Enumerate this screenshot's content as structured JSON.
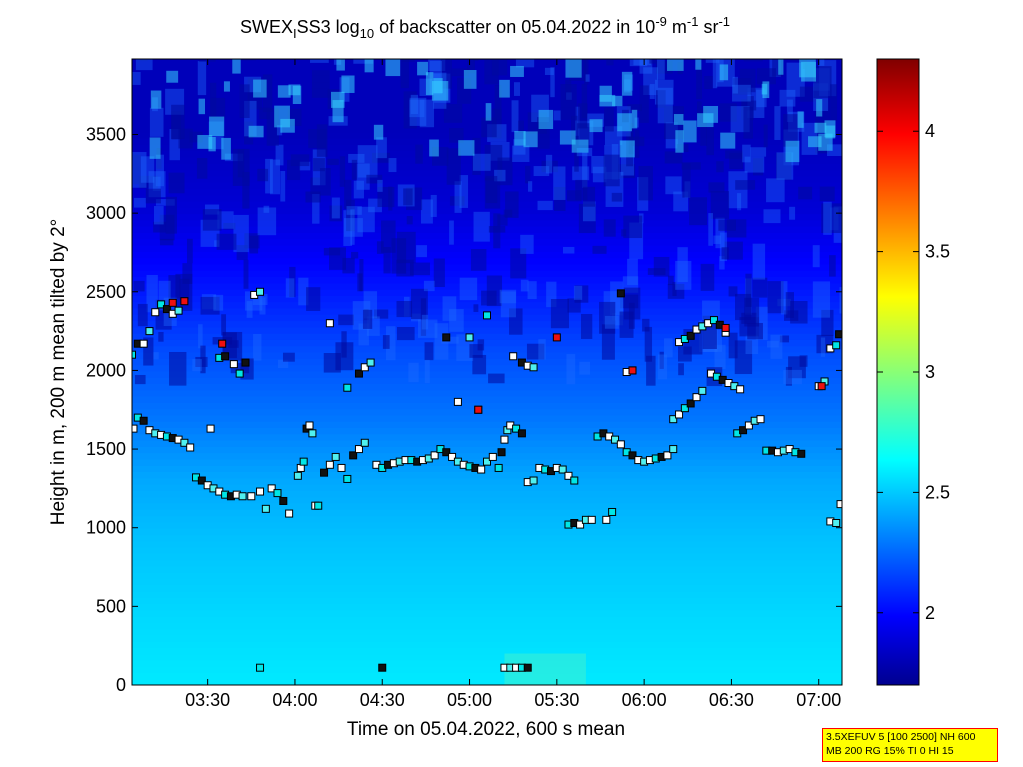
{
  "chart_data": {
    "type": "heatmap",
    "title": {
      "prefix": "SWEX",
      "sub1": "I",
      "mid": "SS3 log",
      "sub2": "10",
      "rest": " of backscatter on 05.04.2022 in 10",
      "sup1": "-9",
      "unit1": " m",
      "sup2": "-1",
      "unit2": " sr",
      "sup3": "-1"
    },
    "xlabel": "Time on 05.04.2022, 600 s mean",
    "ylabel": "Height in m, 200 m mean tilted by 2°",
    "xlim_minutes": [
      184,
      428
    ],
    "ylim": [
      0,
      3980
    ],
    "x_ticks": [
      {
        "t": 210,
        "label": "03:30"
      },
      {
        "t": 240,
        "label": "04:00"
      },
      {
        "t": 270,
        "label": "04:30"
      },
      {
        "t": 300,
        "label": "05:00"
      },
      {
        "t": 330,
        "label": "05:30"
      },
      {
        "t": 360,
        "label": "06:00"
      },
      {
        "t": 390,
        "label": "06:30"
      },
      {
        "t": 420,
        "label": "07:00"
      }
    ],
    "y_ticks": [
      0,
      500,
      1000,
      1500,
      2000,
      2500,
      3000,
      3500
    ],
    "colorbar": {
      "range": [
        1.7,
        4.3
      ],
      "ticks": [
        "2",
        "2.5",
        "3",
        "3.5",
        "4"
      ],
      "tick_values": [
        2,
        2.5,
        3,
        3.5,
        4
      ],
      "colormap": "jet"
    },
    "background_profile": {
      "description_free_values": true,
      "heights": [
        0,
        400,
        900,
        1300,
        1700,
        2100,
        2500,
        3000,
        3500,
        3980
      ],
      "log_backscatter": [
        2.62,
        2.58,
        2.52,
        2.45,
        2.32,
        2.22,
        2.08,
        1.92,
        1.85,
        1.85
      ]
    },
    "series": [
      {
        "name": "cloud base markers",
        "points": [
          [
            184.5,
            1630
          ],
          [
            186,
            1700
          ],
          [
            188,
            1680
          ],
          [
            190,
            1620
          ],
          [
            192,
            1600
          ],
          [
            194,
            1590
          ],
          [
            196,
            1580
          ],
          [
            198,
            1570
          ],
          [
            200,
            1560
          ],
          [
            202,
            1540
          ],
          [
            204,
            1510
          ],
          [
            206,
            1320
          ],
          [
            208,
            1300
          ],
          [
            210,
            1270
          ],
          [
            212,
            1250
          ],
          [
            214,
            1230
          ],
          [
            216,
            1210
          ],
          [
            218,
            1200
          ],
          [
            220,
            1210
          ],
          [
            222,
            1200
          ],
          [
            225,
            1200
          ],
          [
            184,
            2100
          ],
          [
            186,
            2170
          ],
          [
            188,
            2170
          ],
          [
            190,
            2250
          ],
          [
            192,
            2370
          ],
          [
            194,
            2420
          ],
          [
            196,
            2390
          ],
          [
            198,
            2360
          ],
          [
            200,
            2380
          ],
          [
            211,
            1630
          ],
          [
            214,
            2080
          ],
          [
            216,
            2090
          ],
          [
            226,
            2480
          ],
          [
            228,
            2500
          ],
          [
            219,
            2040
          ],
          [
            221,
            1980
          ],
          [
            223,
            2050
          ],
          [
            228,
            1230
          ],
          [
            230,
            1120
          ],
          [
            232,
            1250
          ],
          [
            234,
            1220
          ],
          [
            236,
            1170
          ],
          [
            238,
            1090
          ],
          [
            241,
            1330
          ],
          [
            242,
            1380
          ],
          [
            243,
            1420
          ],
          [
            244,
            1630
          ],
          [
            245,
            1650
          ],
          [
            246,
            1600
          ],
          [
            247,
            1140
          ],
          [
            248,
            1140
          ],
          [
            250,
            1350
          ],
          [
            252,
            1400
          ],
          [
            254,
            1450
          ],
          [
            256,
            1380
          ],
          [
            258,
            1310
          ],
          [
            260,
            1460
          ],
          [
            262,
            1500
          ],
          [
            264,
            1540
          ],
          [
            252,
            2300
          ],
          [
            258,
            1890
          ],
          [
            262,
            1980
          ],
          [
            264,
            2020
          ],
          [
            266,
            2050
          ],
          [
            268,
            1400
          ],
          [
            270,
            1380
          ],
          [
            272,
            1400
          ],
          [
            274,
            1410
          ],
          [
            276,
            1420
          ],
          [
            278,
            1430
          ],
          [
            280,
            1430
          ],
          [
            282,
            1420
          ],
          [
            284,
            1430
          ],
          [
            286,
            1440
          ],
          [
            288,
            1460
          ],
          [
            290,
            1500
          ],
          [
            292,
            1480
          ],
          [
            294,
            1450
          ],
          [
            296,
            1420
          ],
          [
            298,
            1400
          ],
          [
            300,
            1390
          ],
          [
            302,
            1380
          ],
          [
            304,
            1370
          ],
          [
            306,
            1420
          ],
          [
            308,
            1450
          ],
          [
            310,
            1380
          ],
          [
            292,
            2210
          ],
          [
            296,
            1800
          ],
          [
            300,
            2210
          ],
          [
            303,
            1750
          ],
          [
            306,
            2350
          ],
          [
            311,
            1480
          ],
          [
            312,
            1560
          ],
          [
            313,
            1620
          ],
          [
            314,
            1650
          ],
          [
            316,
            1630
          ],
          [
            318,
            1600
          ],
          [
            320,
            1290
          ],
          [
            322,
            1300
          ],
          [
            324,
            1380
          ],
          [
            326,
            1370
          ],
          [
            328,
            1360
          ],
          [
            330,
            1380
          ],
          [
            332,
            1370
          ],
          [
            334,
            1330
          ],
          [
            336,
            1300
          ],
          [
            318,
            2050
          ],
          [
            320,
            2030
          ],
          [
            322,
            2020
          ],
          [
            315,
            2090
          ],
          [
            334,
            1020
          ],
          [
            336,
            1030
          ],
          [
            338,
            1020
          ],
          [
            340,
            1050
          ],
          [
            342,
            1050
          ],
          [
            344,
            1580
          ],
          [
            346,
            1600
          ],
          [
            348,
            1580
          ],
          [
            350,
            1560
          ],
          [
            352,
            1530
          ],
          [
            354,
            1480
          ],
          [
            356,
            1460
          ],
          [
            358,
            1430
          ],
          [
            360,
            1420
          ],
          [
            362,
            1430
          ],
          [
            364,
            1440
          ],
          [
            366,
            1450
          ],
          [
            368,
            1460
          ],
          [
            370,
            1500
          ],
          [
            347,
            1050
          ],
          [
            349,
            1100
          ],
          [
            352,
            2490
          ],
          [
            354,
            1990
          ],
          [
            356,
            2000
          ],
          [
            372,
            2180
          ],
          [
            374,
            2200
          ],
          [
            376,
            2220
          ],
          [
            378,
            2260
          ],
          [
            380,
            2280
          ],
          [
            382,
            2300
          ],
          [
            384,
            2320
          ],
          [
            386,
            2290
          ],
          [
            388,
            2240
          ],
          [
            370,
            1690
          ],
          [
            372,
            1720
          ],
          [
            374,
            1760
          ],
          [
            376,
            1790
          ],
          [
            378,
            1830
          ],
          [
            380,
            1870
          ],
          [
            383,
            1980
          ],
          [
            385,
            1960
          ],
          [
            387,
            1940
          ],
          [
            389,
            1920
          ],
          [
            391,
            1900
          ],
          [
            393,
            1880
          ],
          [
            392,
            1600
          ],
          [
            394,
            1620
          ],
          [
            396,
            1650
          ],
          [
            398,
            1680
          ],
          [
            400,
            1690
          ],
          [
            402,
            1490
          ],
          [
            404,
            1490
          ],
          [
            406,
            1480
          ],
          [
            408,
            1490
          ],
          [
            410,
            1500
          ],
          [
            412,
            1480
          ],
          [
            414,
            1470
          ],
          [
            420,
            1900
          ],
          [
            422,
            1930
          ],
          [
            424,
            2140
          ],
          [
            426,
            2160
          ],
          [
            427,
            2230
          ],
          [
            424,
            1040
          ],
          [
            426,
            1030
          ],
          [
            427.5,
            1150
          ],
          [
            228,
            110
          ],
          [
            270,
            110
          ],
          [
            312,
            110
          ],
          [
            314,
            110
          ],
          [
            316,
            110
          ],
          [
            318,
            110
          ],
          [
            320,
            110
          ]
        ]
      },
      {
        "name": "red markers",
        "points": [
          [
            198,
            2430
          ],
          [
            202,
            2440
          ],
          [
            215,
            2170
          ],
          [
            303,
            1750
          ],
          [
            330,
            2210
          ],
          [
            356,
            2000
          ],
          [
            388,
            2270
          ],
          [
            421,
            1900
          ]
        ]
      }
    ]
  },
  "infobox": {
    "line1": "3.5XEFUV 5 [100 2500] NH 600",
    "line2": "MB 200 RG 15% TI 0 HI 15"
  }
}
